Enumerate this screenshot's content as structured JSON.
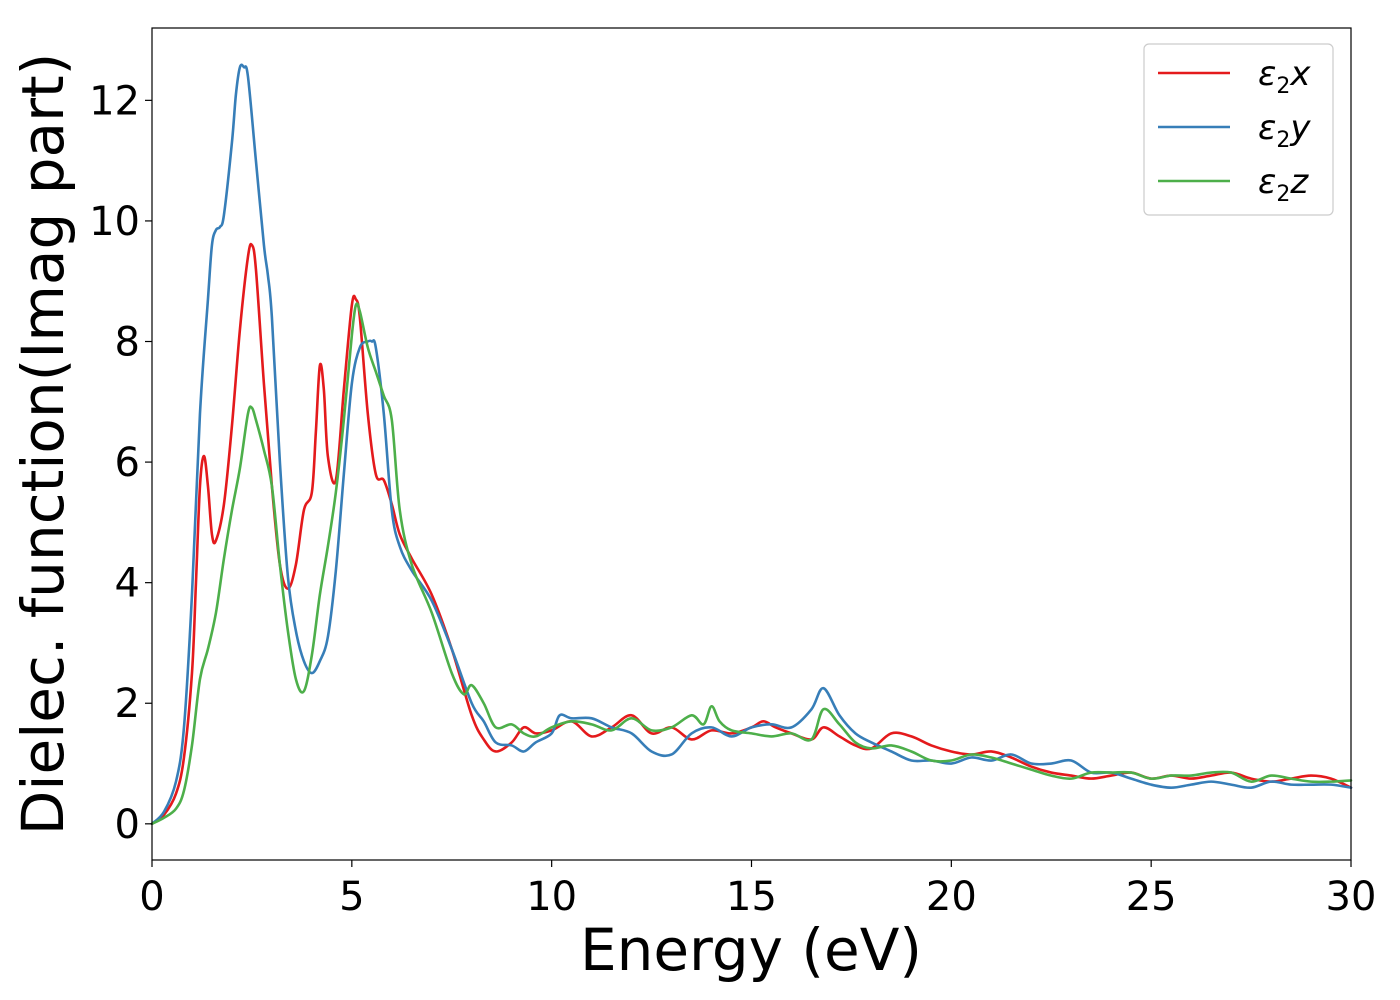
{
  "chart_data": {
    "type": "line",
    "xlabel": "Energy (eV)",
    "ylabel": "Dielec. function(Imag part)",
    "xlim": [
      0,
      30
    ],
    "ylim": [
      -0.6,
      13.2
    ],
    "xticks": [
      0,
      5,
      10,
      15,
      20,
      25,
      30
    ],
    "yticks": [
      0,
      2,
      4,
      6,
      8,
      10,
      12
    ],
    "grid": false,
    "legend_position": "top-right",
    "series": [
      {
        "name_prefix": "ε",
        "name_sub": "2",
        "name_suffix": "x",
        "color": "#e41a1c",
        "x": [
          0,
          0.3,
          0.6,
          0.8,
          1.0,
          1.1,
          1.2,
          1.3,
          1.4,
          1.5,
          1.6,
          1.8,
          2.0,
          2.2,
          2.4,
          2.5,
          2.6,
          2.8,
          3.0,
          3.2,
          3.4,
          3.6,
          3.8,
          4.0,
          4.1,
          4.2,
          4.3,
          4.4,
          4.6,
          4.8,
          5.0,
          5.1,
          5.2,
          5.4,
          5.6,
          5.8,
          6.0,
          6.2,
          6.5,
          7.0,
          7.5,
          8.0,
          8.3,
          8.6,
          9.0,
          9.3,
          9.6,
          10.0,
          10.5,
          11.0,
          11.5,
          12.0,
          12.5,
          13.0,
          13.5,
          14.0,
          14.5,
          15.0,
          15.3,
          15.6,
          16.0,
          16.5,
          16.8,
          17.2,
          17.6,
          18.0,
          18.5,
          19.0,
          19.5,
          20.0,
          20.5,
          21.0,
          21.5,
          22.0,
          22.5,
          23.0,
          23.5,
          24.0,
          24.5,
          25.0,
          25.5,
          26.0,
          26.5,
          27.0,
          27.5,
          28.0,
          28.5,
          29.0,
          29.5,
          30.0
        ],
        "y": [
          0,
          0.15,
          0.5,
          1.1,
          2.5,
          4.0,
          5.6,
          6.1,
          5.6,
          4.8,
          4.7,
          5.3,
          6.6,
          8.2,
          9.4,
          9.6,
          9.2,
          7.3,
          5.6,
          4.3,
          3.9,
          4.3,
          5.2,
          5.5,
          6.5,
          7.6,
          7.2,
          6.1,
          5.7,
          7.2,
          8.6,
          8.7,
          8.4,
          6.8,
          5.8,
          5.7,
          5.3,
          4.8,
          4.4,
          3.8,
          2.9,
          1.8,
          1.4,
          1.2,
          1.35,
          1.6,
          1.5,
          1.55,
          1.7,
          1.45,
          1.6,
          1.8,
          1.5,
          1.6,
          1.4,
          1.55,
          1.5,
          1.6,
          1.7,
          1.6,
          1.5,
          1.4,
          1.6,
          1.45,
          1.3,
          1.25,
          1.5,
          1.45,
          1.3,
          1.2,
          1.15,
          1.2,
          1.1,
          0.95,
          0.85,
          0.8,
          0.75,
          0.8,
          0.85,
          0.75,
          0.8,
          0.75,
          0.8,
          0.85,
          0.75,
          0.7,
          0.75,
          0.8,
          0.75,
          0.6
        ]
      },
      {
        "name_prefix": "ε",
        "name_sub": "2",
        "name_suffix": "y",
        "color": "#377eb8",
        "x": [
          0,
          0.3,
          0.6,
          0.8,
          1.0,
          1.2,
          1.4,
          1.5,
          1.6,
          1.7,
          1.8,
          2.0,
          2.1,
          2.2,
          2.3,
          2.4,
          2.6,
          2.8,
          2.9,
          3.0,
          3.2,
          3.4,
          3.6,
          3.8,
          4.0,
          4.2,
          4.4,
          4.6,
          4.8,
          5.0,
          5.2,
          5.4,
          5.5,
          5.6,
          5.8,
          6.0,
          6.2,
          6.5,
          7.0,
          7.5,
          8.0,
          8.3,
          8.6,
          9.0,
          9.3,
          9.6,
          10.0,
          10.2,
          10.5,
          11.0,
          11.5,
          12.0,
          12.5,
          13.0,
          13.5,
          14.0,
          14.5,
          15.0,
          15.5,
          16.0,
          16.5,
          16.8,
          17.2,
          17.6,
          18.0,
          18.5,
          19.0,
          19.5,
          20.0,
          20.5,
          21.0,
          21.5,
          22.0,
          22.5,
          23.0,
          23.5,
          24.0,
          24.5,
          25.0,
          25.5,
          26.0,
          26.5,
          27.0,
          27.5,
          28.0,
          28.5,
          29.0,
          29.5,
          30.0
        ],
        "y": [
          0,
          0.2,
          0.7,
          1.6,
          3.8,
          6.8,
          8.7,
          9.6,
          9.85,
          9.9,
          10.1,
          11.3,
          12.1,
          12.55,
          12.55,
          12.4,
          11.0,
          9.6,
          9.1,
          8.4,
          6.0,
          4.1,
          3.2,
          2.7,
          2.5,
          2.7,
          3.1,
          4.2,
          5.8,
          7.3,
          7.9,
          8.0,
          8.0,
          7.9,
          6.8,
          5.2,
          4.6,
          4.2,
          3.7,
          2.9,
          2.0,
          1.7,
          1.35,
          1.3,
          1.2,
          1.35,
          1.5,
          1.8,
          1.75,
          1.75,
          1.6,
          1.5,
          1.2,
          1.15,
          1.5,
          1.6,
          1.45,
          1.6,
          1.65,
          1.6,
          1.9,
          2.25,
          1.8,
          1.5,
          1.35,
          1.2,
          1.05,
          1.05,
          1.0,
          1.1,
          1.05,
          1.15,
          1.0,
          1.0,
          1.05,
          0.85,
          0.85,
          0.75,
          0.65,
          0.6,
          0.65,
          0.7,
          0.65,
          0.6,
          0.7,
          0.65,
          0.65,
          0.65,
          0.6
        ]
      },
      {
        "name_prefix": "ε",
        "name_sub": "2",
        "name_suffix": "z",
        "color": "#4daf4a",
        "x": [
          0,
          0.3,
          0.6,
          0.8,
          1.0,
          1.2,
          1.4,
          1.6,
          1.8,
          2.0,
          2.2,
          2.4,
          2.5,
          2.6,
          2.8,
          3.0,
          3.2,
          3.4,
          3.6,
          3.8,
          4.0,
          4.2,
          4.4,
          4.6,
          4.8,
          5.0,
          5.1,
          5.2,
          5.4,
          5.6,
          5.8,
          6.0,
          6.2,
          6.5,
          7.0,
          7.5,
          7.8,
          8.0,
          8.3,
          8.6,
          9.0,
          9.3,
          9.6,
          10.0,
          10.5,
          11.0,
          11.5,
          12.0,
          12.5,
          13.0,
          13.5,
          13.8,
          14.0,
          14.2,
          14.5,
          15.0,
          15.5,
          16.0,
          16.5,
          16.8,
          17.2,
          17.6,
          18.0,
          18.5,
          19.0,
          19.5,
          20.0,
          20.5,
          21.0,
          21.5,
          22.0,
          22.5,
          23.0,
          23.5,
          24.0,
          24.5,
          25.0,
          25.5,
          26.0,
          26.5,
          27.0,
          27.5,
          28.0,
          28.5,
          29.0,
          29.5,
          30.0
        ],
        "y": [
          0,
          0.1,
          0.25,
          0.55,
          1.3,
          2.4,
          2.9,
          3.5,
          4.4,
          5.2,
          5.9,
          6.8,
          6.9,
          6.7,
          6.2,
          5.6,
          4.3,
          3.2,
          2.4,
          2.2,
          2.8,
          3.8,
          4.6,
          5.5,
          6.7,
          8.1,
          8.6,
          8.5,
          7.9,
          7.5,
          7.1,
          6.7,
          5.2,
          4.3,
          3.5,
          2.5,
          2.15,
          2.3,
          2.0,
          1.6,
          1.65,
          1.5,
          1.45,
          1.6,
          1.7,
          1.65,
          1.55,
          1.75,
          1.55,
          1.6,
          1.8,
          1.65,
          1.95,
          1.7,
          1.55,
          1.5,
          1.45,
          1.5,
          1.4,
          1.9,
          1.65,
          1.35,
          1.25,
          1.3,
          1.2,
          1.05,
          1.05,
          1.15,
          1.1,
          1.0,
          0.9,
          0.8,
          0.75,
          0.85,
          0.85,
          0.85,
          0.75,
          0.8,
          0.8,
          0.85,
          0.85,
          0.7,
          0.8,
          0.75,
          0.7,
          0.7,
          0.72
        ]
      }
    ]
  }
}
